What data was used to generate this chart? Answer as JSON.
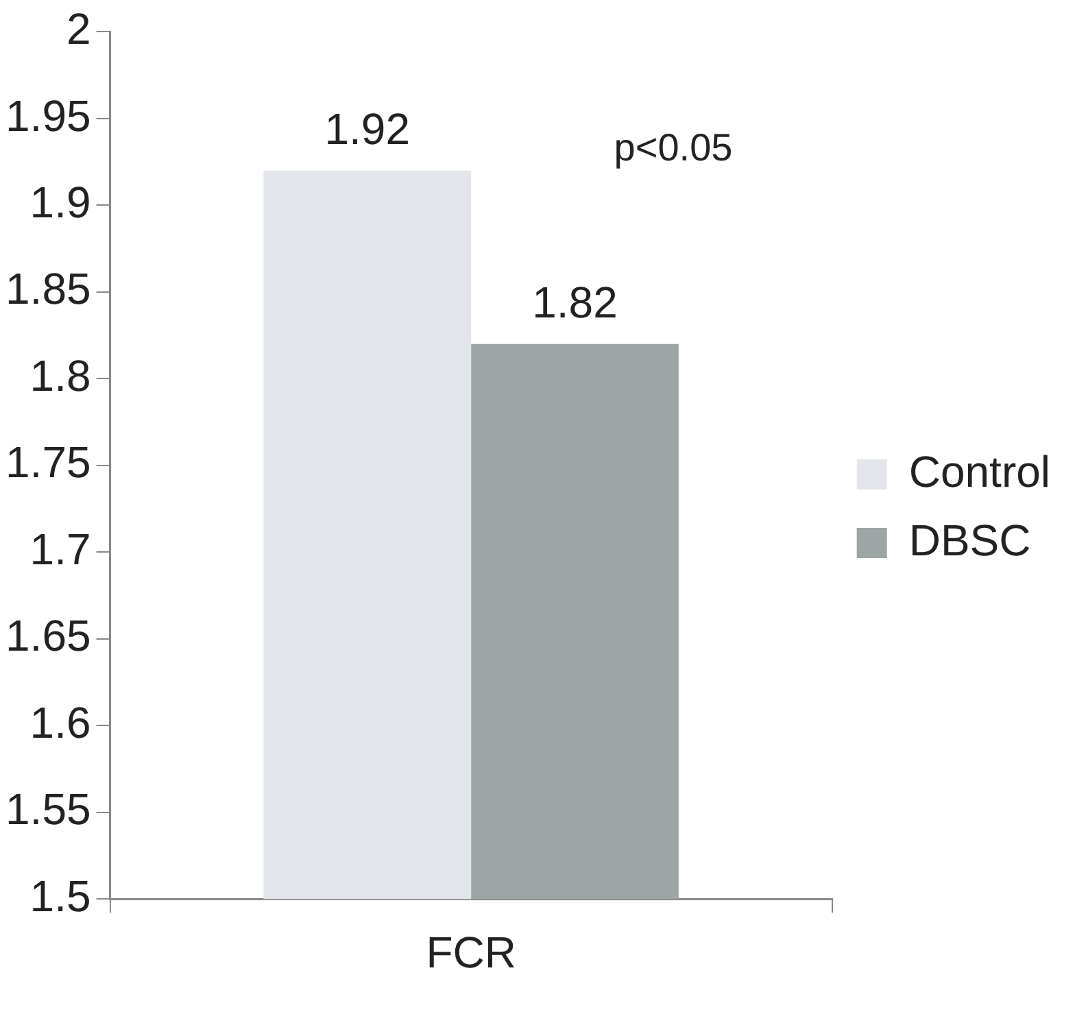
{
  "chart_data": {
    "type": "bar",
    "categories": [
      "FCR"
    ],
    "series": [
      {
        "name": "Control",
        "color": "#e2e5ea",
        "values": [
          1.92
        ]
      },
      {
        "name": "DBSC",
        "color": "#9ea5a5",
        "values": [
          1.82
        ]
      }
    ],
    "ylim": [
      1.5,
      2
    ],
    "yticks": [
      1.5,
      1.55,
      1.6,
      1.65,
      1.7,
      1.75,
      1.8,
      1.85,
      1.9,
      1.95,
      2
    ],
    "data_labels": true,
    "annotations": [
      "p<0.05"
    ],
    "legend": "right",
    "grid": false
  }
}
